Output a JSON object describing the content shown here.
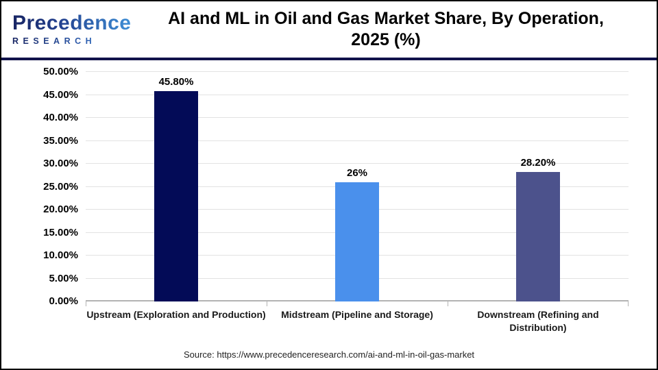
{
  "header": {
    "logo": {
      "brand": "Precedence",
      "sub": "RESEARCH"
    },
    "title_line1": "AI and ML in Oil and Gas Market Share, By Operation,",
    "title_line2": "2025 (%)"
  },
  "chart_data": {
    "type": "bar",
    "title": "AI and ML in Oil and Gas Market Share, By Operation, 2025 (%)",
    "categories": [
      "Upstream (Exploration and Production)",
      "Midstream (Pipeline and Storage)",
      "Downstream (Refining and Distribution)"
    ],
    "values": [
      45.8,
      26,
      28.2
    ],
    "value_labels": [
      "45.80%",
      "26%",
      "28.20%"
    ],
    "bar_colors": [
      "#030b57",
      "#4a90ec",
      "#4c528c"
    ],
    "xlabel": "",
    "ylabel": "",
    "ylim": [
      0,
      50
    ],
    "ytick_step": 5,
    "ytick_labels": [
      "0.00%",
      "5.00%",
      "10.00%",
      "15.00%",
      "20.00%",
      "25.00%",
      "30.00%",
      "35.00%",
      "40.00%",
      "45.00%",
      "50.00%"
    ],
    "grid": true,
    "legend": false
  },
  "footer": {
    "source": "Source: https://www.precedenceresearch.com/ai-and-ml-in-oil-gas-market"
  },
  "colors": {
    "header_divider": "#11124b",
    "gridline": "#e2e2e2",
    "axis": "#b3b3b3",
    "logo_navy": "#182563",
    "logo_blue": "#3e8fd6"
  }
}
